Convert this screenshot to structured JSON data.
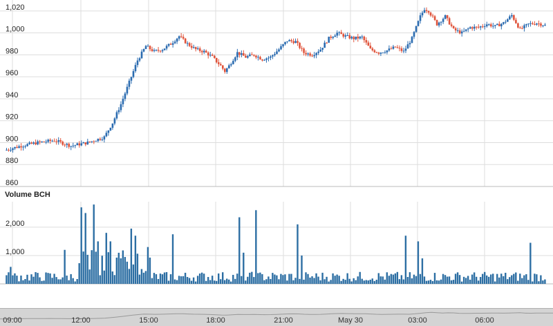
{
  "chart_data": [
    {
      "type": "candlestick",
      "ylim": [
        860,
        1030
      ],
      "y_ticks": [
        "860",
        "880",
        "900",
        "920",
        "940",
        "960",
        "980",
        "1,000",
        "1,020"
      ],
      "y_tick_values": [
        860,
        880,
        900,
        920,
        940,
        960,
        980,
        1000,
        1020
      ],
      "x_ticks": [
        "09:00",
        "12:00",
        "15:00",
        "18:00",
        "21:00",
        "May 30",
        "03:00",
        "06:00"
      ],
      "grid": true,
      "price_points": [
        {
          "t": 0,
          "v": 893
        },
        {
          "t": 4,
          "v": 897
        },
        {
          "t": 8,
          "v": 900
        },
        {
          "t": 12,
          "v": 902
        },
        {
          "t": 16,
          "v": 897
        },
        {
          "t": 20,
          "v": 900
        },
        {
          "t": 24,
          "v": 905
        },
        {
          "t": 26,
          "v": 918
        },
        {
          "t": 28,
          "v": 935
        },
        {
          "t": 30,
          "v": 955
        },
        {
          "t": 32,
          "v": 975
        },
        {
          "t": 34,
          "v": 988
        },
        {
          "t": 36,
          "v": 983
        },
        {
          "t": 38,
          "v": 985
        },
        {
          "t": 40,
          "v": 990
        },
        {
          "t": 42,
          "v": 997
        },
        {
          "t": 44,
          "v": 990
        },
        {
          "t": 46,
          "v": 985
        },
        {
          "t": 48,
          "v": 983
        },
        {
          "t": 50,
          "v": 978
        },
        {
          "t": 52,
          "v": 970
        },
        {
          "t": 53,
          "v": 965
        },
        {
          "t": 54,
          "v": 970
        },
        {
          "t": 56,
          "v": 982
        },
        {
          "t": 58,
          "v": 978
        },
        {
          "t": 60,
          "v": 980
        },
        {
          "t": 62,
          "v": 976
        },
        {
          "t": 64,
          "v": 978
        },
        {
          "t": 66,
          "v": 985
        },
        {
          "t": 68,
          "v": 993
        },
        {
          "t": 70,
          "v": 992
        },
        {
          "t": 72,
          "v": 982
        },
        {
          "t": 74,
          "v": 980
        },
        {
          "t": 76,
          "v": 985
        },
        {
          "t": 78,
          "v": 995
        },
        {
          "t": 80,
          "v": 1000
        },
        {
          "t": 82,
          "v": 997
        },
        {
          "t": 84,
          "v": 995
        },
        {
          "t": 86,
          "v": 996
        },
        {
          "t": 88,
          "v": 985
        },
        {
          "t": 90,
          "v": 982
        },
        {
          "t": 92,
          "v": 984
        },
        {
          "t": 94,
          "v": 987
        },
        {
          "t": 96,
          "v": 983
        },
        {
          "t": 98,
          "v": 995
        },
        {
          "t": 100,
          "v": 1015
        },
        {
          "t": 101,
          "v": 1022
        },
        {
          "t": 102,
          "v": 1020
        },
        {
          "t": 104,
          "v": 1008
        },
        {
          "t": 106,
          "v": 1015
        },
        {
          "t": 108,
          "v": 1003
        },
        {
          "t": 110,
          "v": 1000
        },
        {
          "t": 112,
          "v": 1005
        },
        {
          "t": 114,
          "v": 1005
        },
        {
          "t": 116,
          "v": 1008
        },
        {
          "t": 118,
          "v": 1006
        },
        {
          "t": 120,
          "v": 1009
        },
        {
          "t": 122,
          "v": 1016
        },
        {
          "t": 124,
          "v": 1003
        },
        {
          "t": 126,
          "v": 1008
        },
        {
          "t": 128,
          "v": 1009
        },
        {
          "t": 130,
          "v": 1007
        }
      ]
    },
    {
      "type": "bar",
      "title": "Volume BCH",
      "ylim": [
        0,
        2900
      ],
      "y_ticks": [
        "1,000",
        "2,000"
      ],
      "y_tick_values": [
        1000,
        2000
      ],
      "spikes": [
        {
          "t": 1,
          "v": 600
        },
        {
          "t": 14,
          "v": 1200
        },
        {
          "t": 18,
          "v": 2700
        },
        {
          "t": 19,
          "v": 2500
        },
        {
          "t": 21,
          "v": 2800
        },
        {
          "t": 22,
          "v": 1500
        },
        {
          "t": 24,
          "v": 1800
        },
        {
          "t": 25,
          "v": 1500
        },
        {
          "t": 30,
          "v": 1950
        },
        {
          "t": 31,
          "v": 1700
        },
        {
          "t": 34,
          "v": 1300
        },
        {
          "t": 40,
          "v": 1750
        },
        {
          "t": 56,
          "v": 2350
        },
        {
          "t": 57,
          "v": 1100
        },
        {
          "t": 60,
          "v": 2600
        },
        {
          "t": 70,
          "v": 2100
        },
        {
          "t": 71,
          "v": 1000
        },
        {
          "t": 96,
          "v": 1700
        },
        {
          "t": 99,
          "v": 1500
        },
        {
          "t": 100,
          "v": 900
        },
        {
          "t": 126,
          "v": 1450
        }
      ]
    }
  ],
  "colors": {
    "up": "#2a6bb0",
    "down": "#e0533a",
    "bar": "#2c6ea3",
    "grid": "#dddddd",
    "navigator_fill": "#d4d4d4",
    "navigator_line": "#999999"
  }
}
